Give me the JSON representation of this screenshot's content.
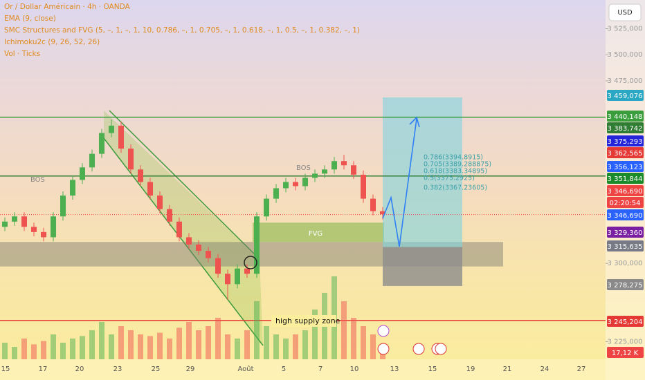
{
  "header": {
    "symbol": "Or / Dollar Américain · 4h · OANDA",
    "indicators": [
      "EMA (9, close)",
      "SMC Structures and FVG (5, –, 1, –, 1, 10, 0.786, –, 1, 0.705, –, 1, 0.618, –, 1, 0.5, –, 1, 0.382, –, 1)",
      "Ichimoku2c (9, 26, 52, 26)",
      "Vol · Ticks"
    ],
    "currency": "USD"
  },
  "chart_data": {
    "type": "candlestick",
    "x_labels": [
      "15",
      "17",
      "20",
      "23",
      "25",
      "29",
      "Août",
      "5",
      "7",
      "10",
      "13",
      "15",
      "19",
      "21",
      "24",
      "27"
    ],
    "open": [
      3335,
      3340,
      3345,
      3335,
      3330,
      3325,
      3345,
      3365,
      3380,
      3392,
      3405,
      3425,
      3432,
      3410,
      3390,
      3378,
      3365,
      3352,
      3340,
      3325,
      3318,
      3312,
      3305,
      3290,
      3280,
      3295,
      3290,
      3345,
      3362,
      3372,
      3378,
      3374,
      3382,
      3386,
      3390,
      3398,
      3394,
      3385,
      3362,
      3350
    ],
    "high": [
      3344,
      3349,
      3349,
      3339,
      3334,
      3349,
      3369,
      3384,
      3396,
      3409,
      3429,
      3438,
      3436,
      3414,
      3394,
      3382,
      3369,
      3356,
      3344,
      3329,
      3322,
      3316,
      3309,
      3294,
      3299,
      3299,
      3349,
      3366,
      3376,
      3382,
      3382,
      3386,
      3390,
      3394,
      3402,
      3404,
      3398,
      3389,
      3366,
      3354
    ],
    "low": [
      3331,
      3336,
      3331,
      3326,
      3321,
      3321,
      3341,
      3361,
      3376,
      3388,
      3401,
      3421,
      3406,
      3386,
      3374,
      3361,
      3348,
      3336,
      3321,
      3314,
      3308,
      3301,
      3286,
      3265,
      3276,
      3286,
      3286,
      3341,
      3358,
      3368,
      3370,
      3370,
      3378,
      3382,
      3386,
      3390,
      3381,
      3358,
      3346,
      3342
    ],
    "close": [
      3340,
      3345,
      3335,
      3330,
      3325,
      3345,
      3365,
      3380,
      3392,
      3405,
      3425,
      3432,
      3410,
      3390,
      3378,
      3365,
      3352,
      3340,
      3325,
      3318,
      3312,
      3305,
      3290,
      3280,
      3295,
      3290,
      3345,
      3362,
      3372,
      3378,
      3374,
      3382,
      3386,
      3390,
      3398,
      3394,
      3385,
      3362,
      3350,
      3347
    ],
    "volume": [
      20,
      15,
      25,
      18,
      22,
      30,
      20,
      25,
      28,
      35,
      45,
      30,
      40,
      35,
      30,
      28,
      32,
      25,
      38,
      45,
      35,
      40,
      50,
      30,
      25,
      35,
      70,
      40,
      30,
      25,
      30,
      35,
      60,
      80,
      100,
      70,
      50,
      40,
      30,
      17.12
    ],
    "volume_lim": [
      0,
      433
    ],
    "up_color": "#4caf50",
    "down_color": "#ef5350",
    "ylim": [
      3208,
      3552.5
    ],
    "yticks": [
      {
        "value": 3525,
        "label": "3 525,000"
      },
      {
        "value": 3500,
        "label": "3 500,000"
      },
      {
        "value": 3475,
        "label": "3 475,000"
      },
      {
        "value": 3300,
        "label": "3 300,000"
      },
      {
        "value": 3225,
        "label": "3 225,000"
      }
    ],
    "price_tags": [
      {
        "value": 3459.076,
        "label": "3 459,076",
        "color": "#2aa7c2"
      },
      {
        "value": 3440.148,
        "label": "3 440,148",
        "color": "#3a9e3c",
        "line": true
      },
      {
        "value": 3383.742,
        "label": "3 383,742",
        "color": "#2e7d32",
        "line": true
      },
      {
        "value": 3375.293,
        "label": "3 375,293",
        "color": "#2424d8"
      },
      {
        "value": 3362.565,
        "label": "3 362,565",
        "color": "#e53935"
      },
      {
        "value": 3356.123,
        "label": "3 356,123",
        "color": "#2962ff"
      },
      {
        "value": 3351.844,
        "label": "3 351,844",
        "color": "#1b8a2a"
      },
      {
        "value": 3346.69,
        "label": "3 346,690",
        "color": "#ef4444"
      },
      {
        "label": "02:20:54",
        "color": "#ef4444"
      },
      {
        "value": 3346.69,
        "label": "3 346,690",
        "color": "#2962ff",
        "dotted": true
      },
      {
        "value": 3329.36,
        "label": "3 329,360",
        "color": "#7b1fa2"
      },
      {
        "value": 3315.635,
        "label": "3 315,635",
        "color": "#787b86"
      },
      {
        "value": 3278.275,
        "label": "3 278,275",
        "color": "#8a8a8a"
      },
      {
        "value": 3245.204,
        "label": "3 245,204",
        "color": "#e53935",
        "line": true
      },
      {
        "value": 17.12,
        "label": "17,12 K",
        "color": "#ef4444"
      }
    ],
    "zone": {
      "top": 3320.5,
      "bottom": 3297
    },
    "fvg": {
      "label": "FVG",
      "top": 3339,
      "bottom": 3320.5
    },
    "fib_labels": [
      "0.786(3394.8915)",
      "0.705(3389.288875)",
      "0.618(3383.34895)",
      "0.5(3375.2925)",
      "0.382(3367.23605)"
    ],
    "annotations": [
      "BOS",
      "BOS",
      "high supply zone"
    ]
  }
}
